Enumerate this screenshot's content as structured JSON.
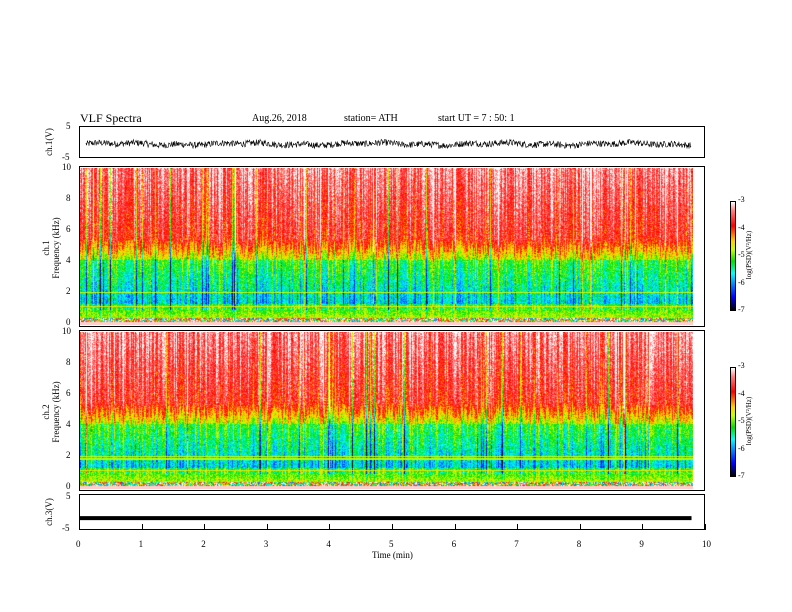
{
  "header": {
    "title": "VLF Spectra",
    "date": "Aug.26, 2018",
    "station": "station= ATH",
    "start": "start UT =   7 : 50: 1"
  },
  "colorbar": {
    "label": "log(PSD)(V²/Hz)",
    "ticks": [
      "-3",
      "-4",
      "-5",
      "-6",
      "-7"
    ]
  },
  "chart_data": [
    {
      "type": "line",
      "ylabel": "ch.1(V)",
      "ylim": [
        -5,
        5
      ],
      "yticks": [
        "5",
        "-5"
      ],
      "xlim": [
        0,
        10
      ],
      "series": [
        {
          "values_range": [
            -1.6,
            1.4
          ]
        }
      ]
    },
    {
      "type": "heatmap",
      "ylabel": "ch.1\nFrequency (kHz)",
      "ylabel_lines": [
        "ch.1",
        "Frequency (kHz)"
      ],
      "ylim": [
        0,
        10
      ],
      "yticks": [
        "0",
        "2",
        "4",
        "6",
        "8",
        "10"
      ],
      "xlim": [
        0,
        10
      ],
      "data_extent_min": 9.8,
      "zlim": [
        -7,
        -3
      ],
      "zlabel": "log(PSD)(V²/Hz)"
    },
    {
      "type": "heatmap",
      "ylabel_lines": [
        "ch.2",
        "Frequency (kHz)"
      ],
      "ylim": [
        0,
        10
      ],
      "yticks": [
        "0",
        "2",
        "4",
        "6",
        "8",
        "10"
      ],
      "xlim": [
        0,
        10
      ],
      "data_extent_min": 9.8,
      "zlim": [
        -7,
        -3
      ],
      "zlabel": "log(PSD)(V²/Hz)"
    },
    {
      "type": "line",
      "ylabel": "ch.3(V)",
      "ylim": [
        -5,
        5
      ],
      "yticks": [
        "5",
        "-5"
      ],
      "xlim": [
        0,
        10
      ],
      "series": [
        {
          "constant": -1.8
        }
      ]
    }
  ],
  "xaxis": {
    "label": "Time (min)",
    "ticks": [
      "0",
      "1",
      "2",
      "3",
      "4",
      "5",
      "6",
      "7",
      "8",
      "9",
      "10"
    ]
  }
}
